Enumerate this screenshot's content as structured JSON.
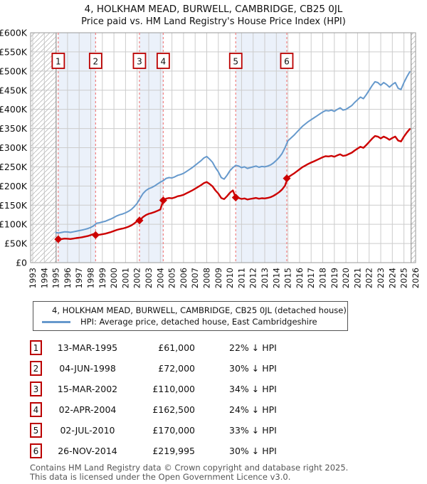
{
  "title": {
    "line1": "4, HOLKHAM MEAD, BURWELL, CAMBRIDGE, CB25 0JL",
    "line2": "Price paid vs. HM Land Registry's House Price Index (HPI)"
  },
  "legend": {
    "items": [
      {
        "label": "4, HOLKHAM MEAD, BURWELL, CAMBRIDGE, CB25 0JL (detached house)",
        "color": "#cc0000"
      },
      {
        "label": "HPI: Average price, detached house, East Cambridgeshire",
        "color": "#6699cc"
      }
    ]
  },
  "table": {
    "rows": [
      {
        "num": "1",
        "date": "13-MAR-1995",
        "price": "£61,000",
        "hpi": "22% ↓ HPI"
      },
      {
        "num": "2",
        "date": "04-JUN-1998",
        "price": "£72,000",
        "hpi": "30% ↓ HPI"
      },
      {
        "num": "3",
        "date": "15-MAR-2002",
        "price": "£110,000",
        "hpi": "34% ↓ HPI"
      },
      {
        "num": "4",
        "date": "02-APR-2004",
        "price": "£162,500",
        "hpi": "24% ↓ HPI"
      },
      {
        "num": "5",
        "date": "02-JUL-2010",
        "price": "£170,000",
        "hpi": "33% ↓ HPI"
      },
      {
        "num": "6",
        "date": "26-NOV-2014",
        "price": "£219,995",
        "hpi": "30% ↓ HPI"
      }
    ]
  },
  "footer": {
    "line1": "Contains HM Land Registry data © Crown copyright and database right 2025.",
    "line2": "This data is licensed under the Open Government Licence v3.0."
  },
  "chart_data": {
    "type": "line",
    "title": "4, HOLKHAM MEAD, BURWELL, CAMBRIDGE, CB25 0JL",
    "subtitle": "Price paid vs. HM Land Registry's House Price Index (HPI)",
    "unit": "GBP_thousands",
    "x_axis": {
      "start_year": 1993,
      "end_year": 2026,
      "tick_step": 1,
      "grid": true
    },
    "y_axis": {
      "min": 0,
      "max": 600,
      "tick_step": 50,
      "tick_prefix": "£",
      "tick_suffix": "K",
      "grid": true
    },
    "legend_position": "bottom",
    "series": [
      {
        "name": "HPI: Average price, detached house, East Cambridgeshire",
        "color": "#6699cc",
        "width": 2,
        "x_start": 1995.0,
        "x_step": 0.25,
        "values": [
          78,
          77.5,
          79,
          80.5,
          80,
          79,
          80.5,
          82,
          83.5,
          85,
          87,
          89,
          92,
          96,
          103,
          104,
          106,
          108,
          111,
          114,
          118,
          122,
          125,
          127,
          130,
          134,
          139,
          146,
          155,
          168,
          180,
          188,
          193,
          196,
          200,
          205,
          210,
          214,
          220,
          222,
          221,
          224,
          228,
          230,
          233,
          238,
          243,
          248,
          254,
          260,
          266,
          273,
          277,
          270,
          262,
          248,
          237,
          222,
          218,
          228,
          240,
          248,
          254,
          252,
          248,
          250,
          246,
          248,
          250,
          252,
          249,
          251,
          250,
          252,
          255,
          260,
          267,
          275,
          285,
          300,
          318,
          325,
          332,
          340,
          348,
          356,
          362,
          368,
          373,
          378,
          383,
          388,
          393,
          397,
          396,
          398,
          395,
          400,
          404,
          398,
          400,
          405,
          410,
          418,
          425,
          432,
          428,
          438,
          450,
          462,
          472,
          470,
          463,
          470,
          465,
          458,
          465,
          470,
          455,
          452,
          470,
          485,
          498
        ]
      },
      {
        "name": "4, HOLKHAM MEAD, BURWELL, CAMBRIDGE, CB25 0JL (detached house)",
        "color": "#cc0000",
        "width": 2.4,
        "x_start": 1995.0,
        "x_step": 0.25,
        "values": [
          null,
          60.5,
          61.6,
          62.8,
          62.4,
          61.6,
          62.8,
          64,
          65.1,
          66.3,
          67.9,
          69.4,
          71.8,
          74.9,
          72.1,
          72.8,
          74.2,
          75.6,
          77.7,
          79.8,
          82.6,
          85.4,
          87.5,
          88.9,
          91,
          93.8,
          97.3,
          102.2,
          108.5,
          110.9,
          118.8,
          124.1,
          127.4,
          129.4,
          132,
          135.3,
          138.6,
          162.6,
          167.2,
          168.7,
          168,
          170.2,
          173.3,
          174.8,
          177.1,
          180.9,
          184.7,
          188.5,
          193,
          197.6,
          202.2,
          207.5,
          210.5,
          205.2,
          199.1,
          188.5,
          180.1,
          168.7,
          165.7,
          173.3,
          182.4,
          188.5,
          170.2,
          168.8,
          166.2,
          167.5,
          164.8,
          166.2,
          167.5,
          168.8,
          166.8,
          168.2,
          167.5,
          168.8,
          170.9,
          174.2,
          178.9,
          184.3,
          190.9,
          201,
          222.6,
          227.5,
          232.4,
          238,
          243.6,
          249.2,
          253.4,
          257.6,
          261.1,
          264.6,
          268.1,
          271.6,
          275.1,
          277.9,
          277.2,
          278.6,
          276.5,
          280,
          282.8,
          278.6,
          280,
          283.5,
          287,
          292.6,
          297.5,
          302.4,
          299.6,
          306.6,
          315,
          323.4,
          330.4,
          329,
          324.1,
          329,
          325.5,
          320.6,
          325.5,
          329,
          318.5,
          316.4,
          329,
          339.5,
          348.6
        ]
      }
    ],
    "sales": [
      {
        "n": "1",
        "year": 1995.2,
        "price_k": 61
      },
      {
        "n": "2",
        "year": 1998.42,
        "price_k": 72
      },
      {
        "n": "3",
        "year": 2002.2,
        "price_k": 110
      },
      {
        "n": "4",
        "year": 2004.25,
        "price_k": 162.5
      },
      {
        "n": "5",
        "year": 2010.5,
        "price_k": 170
      },
      {
        "n": "6",
        "year": 2014.9,
        "price_k": 219.995
      }
    ],
    "bands": [
      [
        1995.2,
        1998.42
      ],
      [
        2002.2,
        2004.25
      ],
      [
        2010.5,
        2014.9
      ]
    ],
    "hatch_regions": [
      [
        1992.82,
        1995.02
      ],
      [
        2025.62,
        2026.02
      ]
    ],
    "colors": {
      "band": "#ebf1fa",
      "grid": "#cccccc",
      "border": "#9a9a9a",
      "dashed": "#f08080",
      "box_border": "#bb0000",
      "hatch": "#bbbbbb",
      "edge_line": "#888888"
    }
  }
}
